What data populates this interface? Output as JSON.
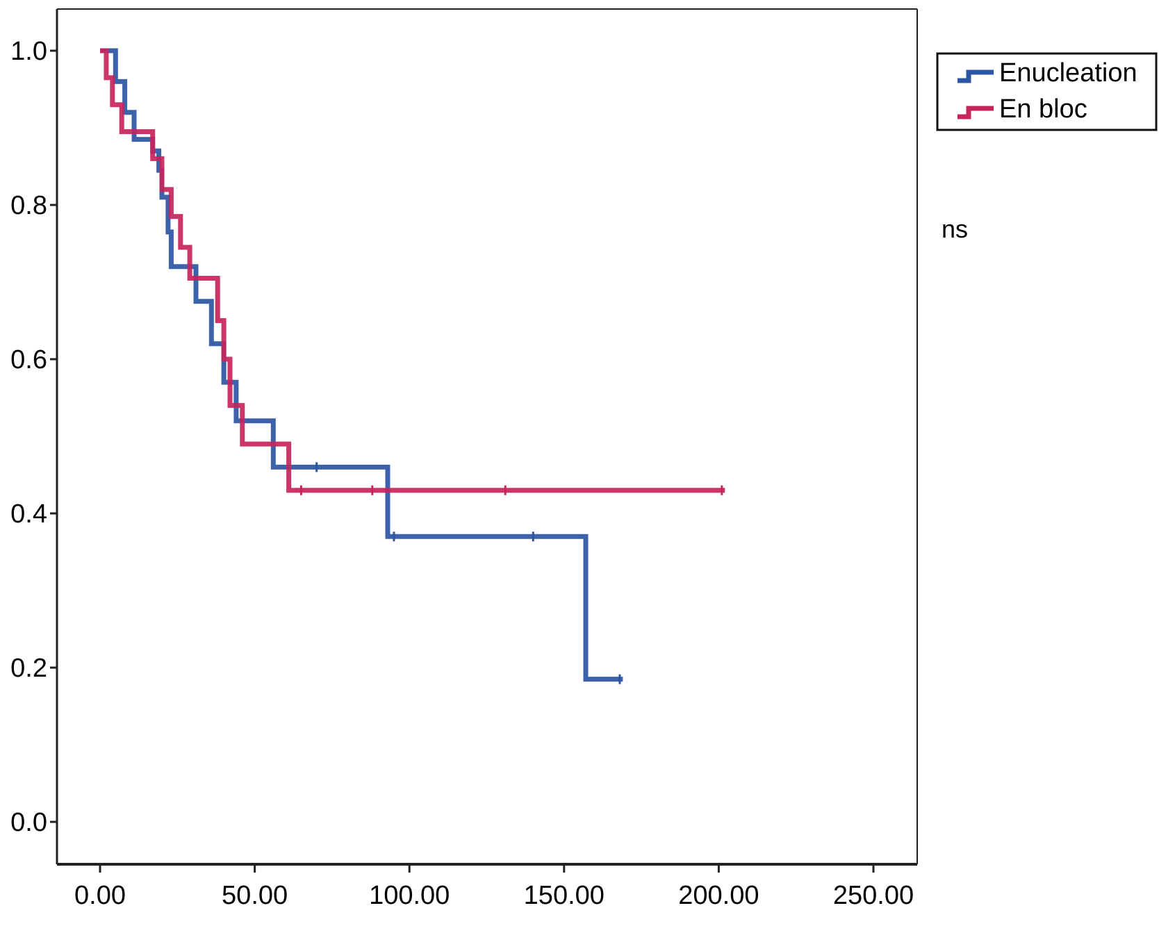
{
  "chart_data": {
    "type": "line",
    "title": "",
    "xlabel": "",
    "ylabel": "",
    "xlim": [
      -15,
      265
    ],
    "ylim": [
      -0.05,
      1.05
    ],
    "x_ticks": [
      "0.00",
      "50.00",
      "100.00",
      "150.00",
      "200.00",
      "250.00"
    ],
    "x_tick_values": [
      0,
      50,
      100,
      150,
      200,
      250
    ],
    "y_ticks": [
      "0.0",
      "0.2",
      "0.4",
      "0.6",
      "0.8",
      "1.0"
    ],
    "y_tick_values": [
      0,
      0.2,
      0.4,
      0.6,
      0.8,
      1.0
    ],
    "grid": false,
    "legend_position": "top-right, outside plot",
    "annotation": "ns",
    "series": [
      {
        "name": "Enucleation",
        "color": "#2b56a3",
        "step": true,
        "points": [
          [
            0,
            1.0
          ],
          [
            5,
            1.0
          ],
          [
            5,
            0.96
          ],
          [
            8,
            0.96
          ],
          [
            8,
            0.92
          ],
          [
            11,
            0.92
          ],
          [
            11,
            0.885
          ],
          [
            17,
            0.885
          ],
          [
            17,
            0.87
          ],
          [
            19,
            0.87
          ],
          [
            19,
            0.845
          ],
          [
            20,
            0.845
          ],
          [
            20,
            0.81
          ],
          [
            22,
            0.81
          ],
          [
            22,
            0.765
          ],
          [
            23,
            0.765
          ],
          [
            23,
            0.72
          ],
          [
            31,
            0.72
          ],
          [
            31,
            0.675
          ],
          [
            36,
            0.675
          ],
          [
            36,
            0.62
          ],
          [
            40,
            0.62
          ],
          [
            40,
            0.57
          ],
          [
            44,
            0.57
          ],
          [
            44,
            0.52
          ],
          [
            56,
            0.52
          ],
          [
            56,
            0.46
          ],
          [
            93,
            0.46
          ],
          [
            93,
            0.37
          ],
          [
            157,
            0.37
          ],
          [
            157,
            0.185
          ],
          [
            169,
            0.185
          ]
        ],
        "censored": [
          [
            70,
            0.46
          ],
          [
            95,
            0.37
          ],
          [
            140,
            0.37
          ],
          [
            168,
            0.185
          ]
        ]
      },
      {
        "name": "En bloc",
        "color": "#c8245c",
        "step": true,
        "points": [
          [
            0,
            1.0
          ],
          [
            2,
            1.0
          ],
          [
            2,
            0.965
          ],
          [
            4,
            0.965
          ],
          [
            4,
            0.93
          ],
          [
            7,
            0.93
          ],
          [
            7,
            0.895
          ],
          [
            17,
            0.895
          ],
          [
            17,
            0.86
          ],
          [
            20,
            0.86
          ],
          [
            20,
            0.82
          ],
          [
            23,
            0.82
          ],
          [
            23,
            0.785
          ],
          [
            26,
            0.785
          ],
          [
            26,
            0.745
          ],
          [
            29,
            0.745
          ],
          [
            29,
            0.705
          ],
          [
            38,
            0.705
          ],
          [
            38,
            0.65
          ],
          [
            40,
            0.65
          ],
          [
            40,
            0.6
          ],
          [
            42,
            0.6
          ],
          [
            42,
            0.54
          ],
          [
            46,
            0.54
          ],
          [
            46,
            0.49
          ],
          [
            61,
            0.49
          ],
          [
            61,
            0.43
          ],
          [
            202,
            0.43
          ]
        ],
        "censored": [
          [
            65,
            0.43
          ],
          [
            88,
            0.43
          ],
          [
            131,
            0.43
          ],
          [
            201,
            0.43
          ]
        ]
      }
    ]
  }
}
